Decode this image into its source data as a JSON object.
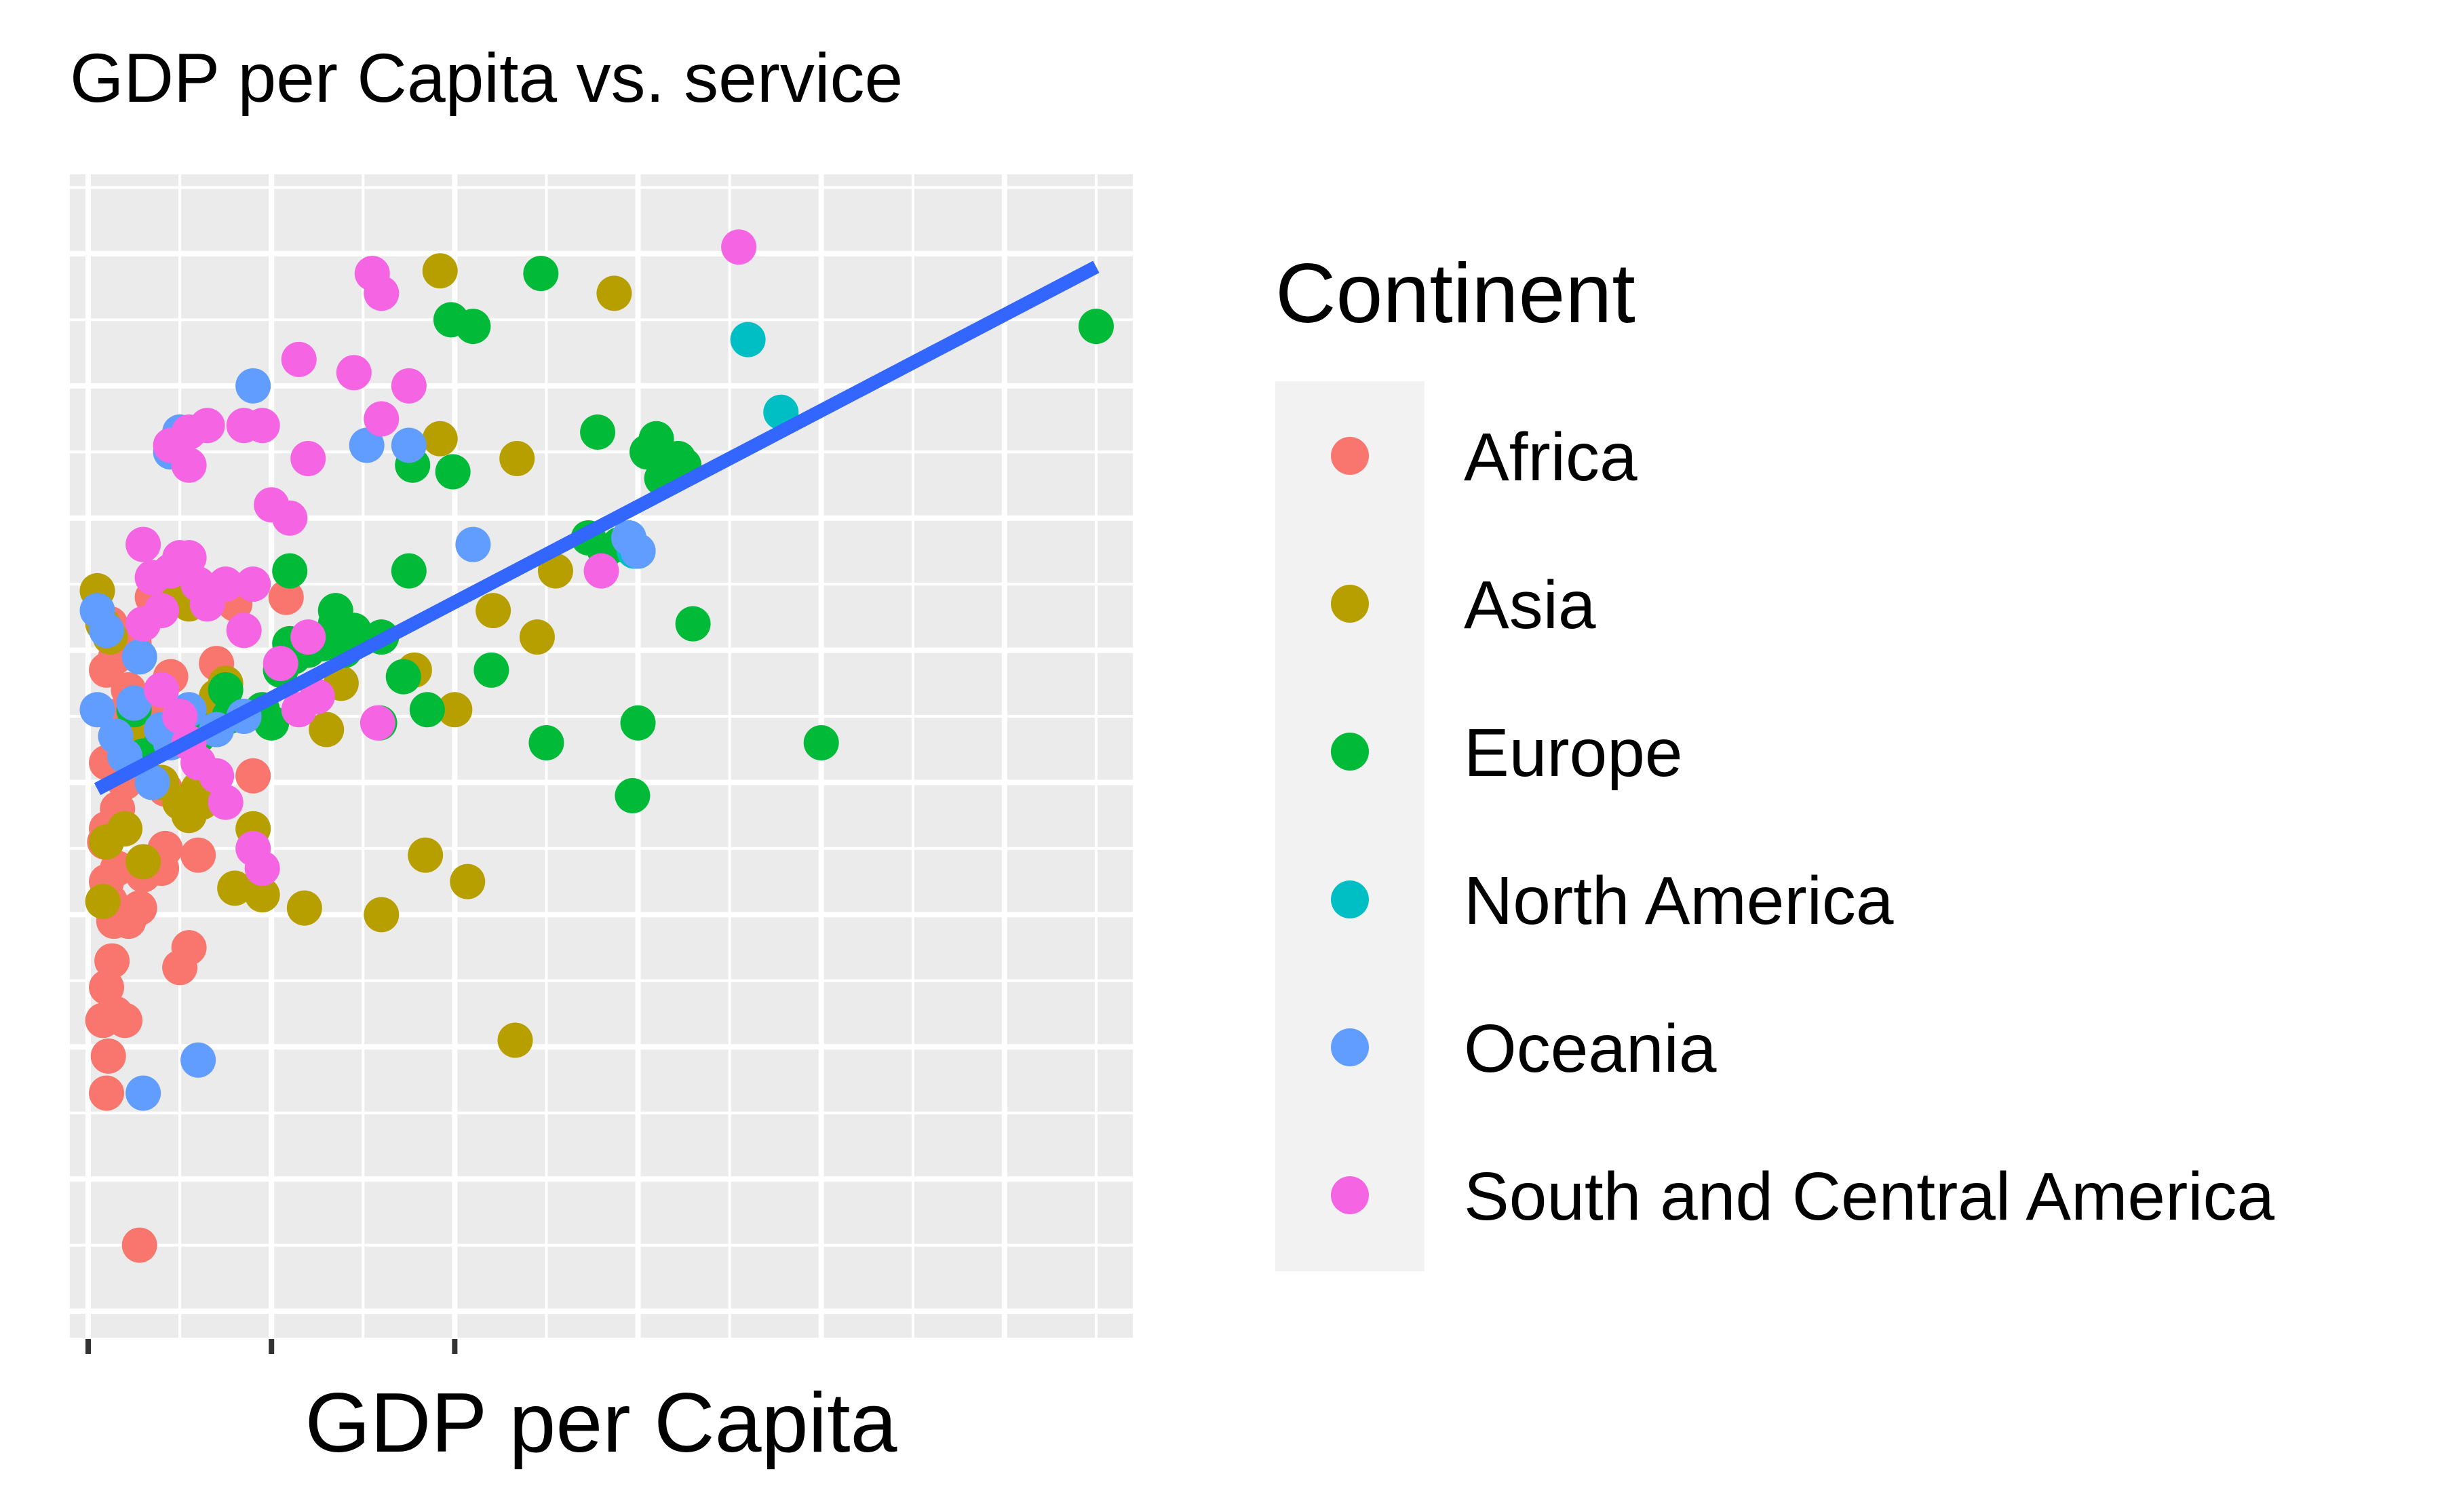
{
  "chart_data": {
    "type": "scatter",
    "title": "GDP per Capita vs. service",
    "xlabel": "GDP per Capita",
    "ylabel": "",
    "x_tick_labels": [],
    "y_tick_labels": [],
    "xlim": [
      -0.1,
      5.7
    ],
    "ylim": [
      -0.2,
      8.6
    ],
    "grid": true,
    "background": "#EBEBEB",
    "legend": {
      "title": "Continent",
      "placement": "right",
      "entries": [
        "Africa",
        "Asia",
        "Europe",
        "North America",
        "Oceania",
        "South and Central America"
      ]
    },
    "colors": {
      "Africa": "#F8766D",
      "Asia": "#B79F00",
      "Europe": "#00BA38",
      "North America": "#00BFC4",
      "Oceania": "#619CFF",
      "South and Central America": "#F564E3",
      "trend": "#3366FF"
    },
    "trend_line": {
      "x": [
        0.05,
        5.5
      ],
      "y": [
        3.95,
        7.9
      ]
    },
    "series": [
      {
        "name": "Africa",
        "points": [
          [
            0.28,
            0.5
          ],
          [
            0.1,
            1.65
          ],
          [
            0.11,
            1.93
          ],
          [
            0.08,
            2.2
          ],
          [
            0.15,
            2.25
          ],
          [
            0.2,
            2.2
          ],
          [
            0.1,
            2.45
          ],
          [
            0.13,
            2.65
          ],
          [
            0.14,
            2.95
          ],
          [
            0.22,
            2.95
          ],
          [
            0.28,
            3.05
          ],
          [
            0.5,
            2.6
          ],
          [
            0.55,
            2.75
          ],
          [
            0.12,
            3.1
          ],
          [
            0.1,
            3.25
          ],
          [
            0.16,
            3.35
          ],
          [
            0.3,
            3.3
          ],
          [
            0.42,
            3.5
          ],
          [
            0.1,
            3.65
          ],
          [
            0.16,
            3.8
          ],
          [
            0.09,
            3.55
          ],
          [
            0.2,
            4.0
          ],
          [
            0.1,
            4.15
          ],
          [
            0.42,
            3.95
          ],
          [
            0.9,
            4.05
          ],
          [
            0.15,
            4.5
          ],
          [
            0.22,
            4.7
          ],
          [
            0.1,
            4.85
          ],
          [
            0.32,
            4.55
          ],
          [
            0.15,
            4.95
          ],
          [
            0.35,
            5.4
          ],
          [
            0.8,
            5.35
          ],
          [
            1.08,
            5.4
          ],
          [
            0.55,
            3.85
          ],
          [
            0.4,
            3.35
          ],
          [
            0.6,
            3.45
          ],
          [
            0.25,
            5.05
          ],
          [
            0.45,
            4.8
          ],
          [
            0.12,
            5.2
          ],
          [
            0.7,
            4.9
          ]
        ]
      },
      {
        "name": "Asia",
        "points": [
          [
            1.92,
            7.87
          ],
          [
            2.87,
            7.7
          ],
          [
            1.92,
            6.6
          ],
          [
            2.34,
            6.45
          ],
          [
            2.21,
            5.3
          ],
          [
            1.38,
            4.75
          ],
          [
            1.78,
            4.85
          ],
          [
            2.0,
            4.55
          ],
          [
            1.6,
            3.0
          ],
          [
            2.07,
            3.25
          ],
          [
            1.84,
            3.45
          ],
          [
            2.33,
            2.05
          ],
          [
            1.18,
            3.05
          ],
          [
            0.05,
            5.45
          ],
          [
            0.08,
            5.2
          ],
          [
            0.5,
            5.45
          ],
          [
            0.55,
            5.35
          ],
          [
            0.3,
            4.35
          ],
          [
            0.4,
            4.0
          ],
          [
            0.55,
            3.75
          ],
          [
            0.6,
            3.95
          ],
          [
            0.65,
            4.5
          ],
          [
            0.7,
            4.65
          ],
          [
            0.75,
            4.75
          ],
          [
            0.62,
            3.85
          ],
          [
            0.5,
            3.85
          ],
          [
            0.9,
            3.65
          ],
          [
            0.8,
            3.2
          ],
          [
            0.95,
            3.15
          ],
          [
            1.3,
            4.4
          ],
          [
            2.45,
            5.1
          ],
          [
            2.55,
            5.6
          ],
          [
            0.2,
            3.65
          ],
          [
            0.3,
            3.4
          ],
          [
            0.1,
            3.55
          ],
          [
            0.12,
            5.1
          ],
          [
            0.25,
            4.45
          ],
          [
            0.35,
            4.0
          ],
          [
            0.08,
            3.1
          ]
        ]
      },
      {
        "name": "Europe",
        "points": [
          [
            2.47,
            7.85
          ],
          [
            1.98,
            7.5
          ],
          [
            2.1,
            7.45
          ],
          [
            5.5,
            7.45
          ],
          [
            2.78,
            6.65
          ],
          [
            3.1,
            6.6
          ],
          [
            3.05,
            6.5
          ],
          [
            3.22,
            6.45
          ],
          [
            3.12,
            6.5
          ],
          [
            3.25,
            6.4
          ],
          [
            1.77,
            6.4
          ],
          [
            1.99,
            6.35
          ],
          [
            3.13,
            6.3
          ],
          [
            2.73,
            5.85
          ],
          [
            2.9,
            5.8
          ],
          [
            2.82,
            5.75
          ],
          [
            3.0,
            5.75
          ],
          [
            3.3,
            5.2
          ],
          [
            1.75,
            5.6
          ],
          [
            1.35,
            5.2
          ],
          [
            1.45,
            5.15
          ],
          [
            1.35,
            5.3
          ],
          [
            1.1,
            5.6
          ],
          [
            1.4,
            5.0
          ],
          [
            1.6,
            5.1
          ],
          [
            1.72,
            4.8
          ],
          [
            2.2,
            4.85
          ],
          [
            1.1,
            5.05
          ],
          [
            1.05,
            4.85
          ],
          [
            0.75,
            4.7
          ],
          [
            0.77,
            4.5
          ],
          [
            0.6,
            4.35
          ],
          [
            0.95,
            4.55
          ],
          [
            1.59,
            4.45
          ],
          [
            1.0,
            4.45
          ],
          [
            1.85,
            4.55
          ],
          [
            3.0,
            4.45
          ],
          [
            2.5,
            4.3
          ],
          [
            4.0,
            4.3
          ],
          [
            2.97,
            3.9
          ],
          [
            0.25,
            4.55
          ],
          [
            0.4,
            4.3
          ],
          [
            0.55,
            4.5
          ],
          [
            0.3,
            4.2
          ],
          [
            0.7,
            4.4
          ],
          [
            1.05,
            4.85
          ],
          [
            1.12,
            4.95
          ],
          [
            1.2,
            5.0
          ],
          [
            1.28,
            5.05
          ]
        ]
      },
      {
        "name": "North America",
        "points": [
          [
            3.6,
            7.35
          ],
          [
            3.78,
            6.8
          ],
          [
            2.98,
            5.75
          ]
        ]
      },
      {
        "name": "Oceania",
        "points": [
          [
            0.9,
            7.0
          ],
          [
            1.52,
            6.55
          ],
          [
            1.75,
            6.55
          ],
          [
            0.5,
            6.65
          ],
          [
            0.45,
            6.5
          ],
          [
            0.5,
            6.65
          ],
          [
            2.1,
            5.8
          ],
          [
            3.0,
            5.75
          ],
          [
            2.95,
            5.85
          ],
          [
            0.05,
            5.3
          ],
          [
            0.1,
            5.15
          ],
          [
            0.28,
            4.95
          ],
          [
            0.05,
            4.55
          ],
          [
            0.2,
            4.2
          ],
          [
            0.35,
            4.0
          ],
          [
            0.6,
            1.9
          ],
          [
            0.3,
            1.65
          ],
          [
            0.15,
            4.35
          ],
          [
            0.25,
            4.6
          ],
          [
            0.4,
            4.4
          ],
          [
            0.55,
            4.55
          ],
          [
            0.7,
            4.4
          ],
          [
            0.85,
            4.5
          ],
          [
            0.45,
            4.3
          ]
        ]
      },
      {
        "name": "South and Central America",
        "points": [
          [
            3.55,
            8.05
          ],
          [
            1.55,
            7.85
          ],
          [
            1.6,
            7.7
          ],
          [
            1.15,
            7.2
          ],
          [
            1.45,
            7.1
          ],
          [
            1.75,
            7.0
          ],
          [
            0.55,
            6.65
          ],
          [
            0.65,
            6.7
          ],
          [
            0.85,
            6.7
          ],
          [
            0.95,
            6.7
          ],
          [
            1.6,
            6.75
          ],
          [
            1.2,
            6.45
          ],
          [
            0.55,
            6.4
          ],
          [
            0.45,
            6.55
          ],
          [
            1.0,
            6.1
          ],
          [
            1.1,
            6.0
          ],
          [
            0.3,
            5.8
          ],
          [
            0.45,
            5.6
          ],
          [
            0.5,
            5.7
          ],
          [
            0.55,
            5.7
          ],
          [
            0.6,
            5.5
          ],
          [
            0.75,
            5.5
          ],
          [
            0.9,
            5.5
          ],
          [
            0.85,
            5.15
          ],
          [
            1.2,
            5.1
          ],
          [
            1.05,
            4.9
          ],
          [
            1.25,
            4.65
          ],
          [
            1.15,
            4.55
          ],
          [
            1.58,
            4.45
          ],
          [
            2.8,
            5.6
          ],
          [
            0.6,
            4.15
          ],
          [
            0.7,
            4.05
          ],
          [
            0.75,
            3.85
          ],
          [
            0.9,
            3.5
          ],
          [
            0.95,
            3.35
          ],
          [
            0.35,
            5.55
          ],
          [
            0.4,
            5.3
          ],
          [
            0.65,
            5.35
          ],
          [
            0.4,
            4.7
          ],
          [
            0.5,
            4.5
          ],
          [
            0.55,
            4.3
          ],
          [
            0.3,
            5.2
          ]
        ]
      }
    ]
  }
}
